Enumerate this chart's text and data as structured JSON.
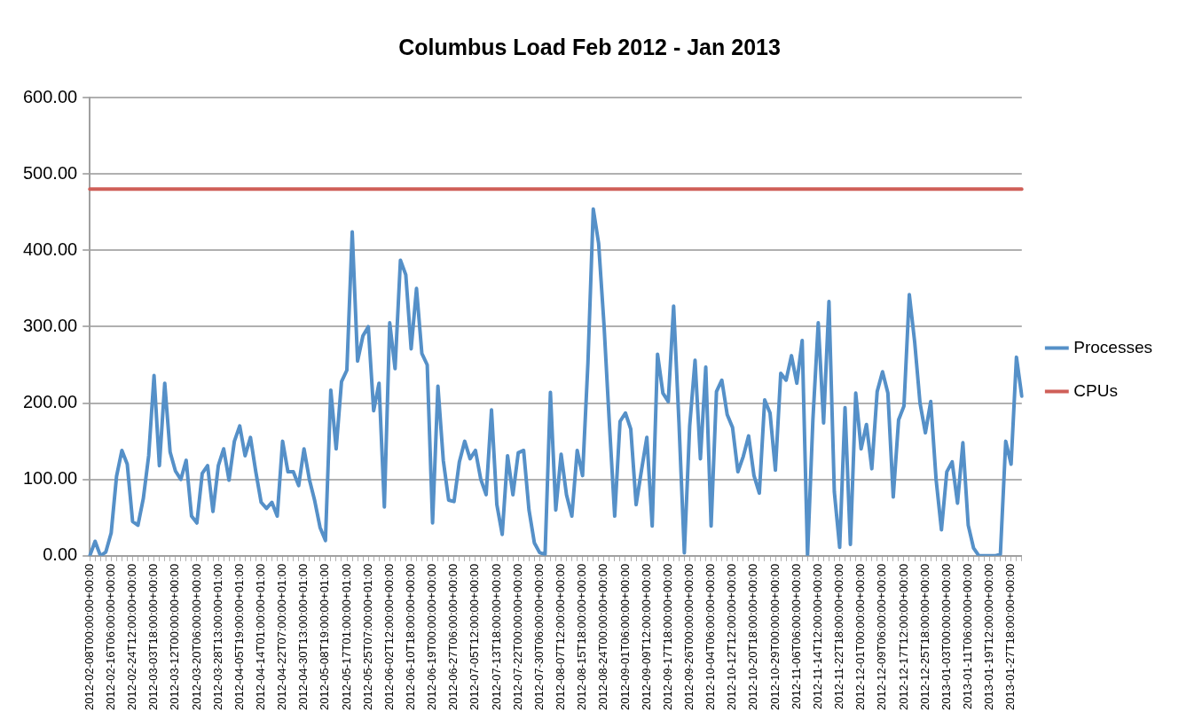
{
  "chart_data": {
    "type": "line",
    "title": "Columbus Load Feb 2012 - Jan 2013",
    "categories": [
      "2012-02-08T00:00:00+00:00",
      null,
      null,
      null,
      "2012-02-16T06:00:00+00:00",
      null,
      null,
      null,
      "2012-02-24T12:00:00+00:00",
      null,
      null,
      null,
      "2012-03-03T18:00:00+00:00",
      null,
      null,
      null,
      "2012-03-12T00:00:00+00:00",
      null,
      null,
      null,
      "2012-03-20T06:00:00+00:00",
      null,
      null,
      null,
      "2012-03-28T13:00:00+01:00",
      null,
      null,
      null,
      "2012-04-05T19:00:00+01:00",
      null,
      null,
      null,
      "2012-04-14T01:00:00+01:00",
      null,
      null,
      null,
      "2012-04-22T07:00:00+01:00",
      null,
      null,
      null,
      "2012-04-30T13:00:00+01:00",
      null,
      null,
      null,
      "2012-05-08T19:00:00+01:00",
      null,
      null,
      null,
      "2012-05-17T01:00:00+01:00",
      null,
      null,
      null,
      "2012-05-25T07:00:00+01:00",
      null,
      null,
      null,
      "2012-06-02T12:00:00+00:00",
      null,
      null,
      null,
      "2012-06-10T18:00:00+00:00",
      null,
      null,
      null,
      "2012-06-19T00:00:00+00:00",
      null,
      null,
      null,
      "2012-06-27T06:00:00+00:00",
      null,
      null,
      null,
      "2012-07-05T12:00:00+00:00",
      null,
      null,
      null,
      "2012-07-13T18:00:00+00:00",
      null,
      null,
      null,
      "2012-07-22T00:00:00+00:00",
      null,
      null,
      null,
      "2012-07-30T06:00:00+00:00",
      null,
      null,
      null,
      "2012-08-07T12:00:00+00:00",
      null,
      null,
      null,
      "2012-08-15T18:00:00+00:00",
      null,
      null,
      null,
      "2012-08-24T00:00:00+00:00",
      null,
      null,
      null,
      "2012-09-01T06:00:00+00:00",
      null,
      null,
      null,
      "2012-09-09T12:00:00+00:00",
      null,
      null,
      null,
      "2012-09-17T18:00:00+00:00",
      null,
      null,
      null,
      "2012-09-26T00:00:00+00:00",
      null,
      null,
      null,
      "2012-10-04T06:00:00+00:00",
      null,
      null,
      null,
      "2012-10-12T12:00:00+00:00",
      null,
      null,
      null,
      "2012-10-20T18:00:00+00:00",
      null,
      null,
      null,
      "2012-10-29T00:00:00+00:00",
      null,
      null,
      null,
      "2012-11-06T06:00:00+00:00",
      null,
      null,
      null,
      "2012-11-14T12:00:00+00:00",
      null,
      null,
      null,
      "2012-11-22T18:00:00+00:00",
      null,
      null,
      null,
      "2012-12-01T00:00:00+00:00",
      null,
      null,
      null,
      "2012-12-09T06:00:00+00:00",
      null,
      null,
      null,
      "2012-12-17T12:00:00+00:00",
      null,
      null,
      null,
      "2012-12-25T18:00:00+00:00",
      null,
      null,
      null,
      "2013-01-03T00:00:00+00:00",
      null,
      null,
      null,
      "2013-01-11T06:00:00+00:00",
      null,
      null,
      null,
      "2013-01-19T12:00:00+00:00",
      null,
      null,
      null,
      "2013-01-27T18:00:00+00:00",
      null,
      null
    ],
    "series": [
      {
        "name": "Processes",
        "color": "#5590c8",
        "values": [
          0,
          19,
          0,
          5,
          30,
          104,
          138,
          120,
          45,
          40,
          75,
          131,
          236,
          118,
          226,
          136,
          111,
          100,
          125,
          52,
          43,
          108,
          118,
          58,
          118,
          140,
          99,
          150,
          170,
          131,
          155,
          110,
          70,
          62,
          70,
          52,
          150,
          110,
          110,
          92,
          140,
          100,
          72,
          37,
          20,
          217,
          140,
          228,
          243,
          424,
          255,
          288,
          300,
          190,
          226,
          64,
          305,
          245,
          387,
          368,
          271,
          350,
          265,
          250,
          43,
          222,
          125,
          73,
          71,
          123,
          150,
          127,
          138,
          100,
          80,
          191,
          67,
          28,
          131,
          80,
          135,
          138,
          60,
          17,
          4,
          2,
          214,
          60,
          133,
          80,
          52,
          138,
          105,
          252,
          454,
          409,
          303,
          174,
          52,
          176,
          187,
          166,
          67,
          112,
          155,
          39,
          264,
          213,
          202,
          327,
          174,
          4,
          170,
          256,
          127,
          247,
          39,
          215,
          230,
          185,
          168,
          110,
          130,
          157,
          105,
          82,
          204,
          187,
          112,
          239,
          230,
          262,
          226,
          282,
          0,
          178,
          305,
          174,
          333,
          84,
          11,
          194,
          15,
          213,
          140,
          172,
          114,
          215,
          241,
          213,
          77,
          178,
          196,
          342,
          280,
          200,
          161,
          202,
          100,
          34,
          110,
          123,
          69,
          148,
          40,
          10,
          0,
          0,
          0,
          0,
          2,
          150,
          120,
          260,
          209
        ]
      },
      {
        "name": "CPUs",
        "color": "#cf5f58",
        "values": [
          480,
          480,
          480,
          480,
          480,
          480,
          480,
          480,
          480,
          480,
          480,
          480,
          480,
          480,
          480,
          480,
          480,
          480,
          480,
          480,
          480,
          480,
          480,
          480,
          480,
          480,
          480,
          480,
          480,
          480,
          480,
          480,
          480,
          480,
          480,
          480,
          480,
          480,
          480,
          480,
          480,
          480,
          480,
          480,
          480,
          480,
          480,
          480,
          480,
          480,
          480,
          480,
          480,
          480,
          480,
          480,
          480,
          480,
          480,
          480,
          480,
          480,
          480,
          480,
          480,
          480,
          480,
          480,
          480,
          480,
          480,
          480,
          480,
          480,
          480,
          480,
          480,
          480,
          480,
          480,
          480,
          480,
          480,
          480,
          480,
          480,
          480,
          480,
          480,
          480,
          480,
          480,
          480,
          480,
          480,
          480,
          480,
          480,
          480,
          480,
          480,
          480,
          480,
          480,
          480,
          480,
          480,
          480,
          480,
          480,
          480,
          480,
          480,
          480,
          480,
          480,
          480,
          480,
          480,
          480,
          480,
          480,
          480,
          480,
          480,
          480,
          480,
          480,
          480,
          480,
          480,
          480,
          480,
          480,
          480,
          480,
          480,
          480,
          480,
          480,
          480,
          480,
          480,
          480,
          480,
          480,
          480,
          480,
          480,
          480,
          480,
          480,
          480,
          480,
          480,
          480,
          480,
          480,
          480,
          480,
          480,
          480,
          480,
          480,
          480,
          480,
          480,
          480,
          480,
          480,
          480,
          480,
          480,
          480,
          480
        ]
      }
    ],
    "ylim": [
      0,
      600
    ],
    "yticks": [
      {
        "value": 0,
        "label": "0.00"
      },
      {
        "value": 100,
        "label": "100.00"
      },
      {
        "value": 200,
        "label": "200.00"
      },
      {
        "value": 300,
        "label": "300.00"
      },
      {
        "value": 400,
        "label": "400.00"
      },
      {
        "value": 500,
        "label": "500.00"
      },
      {
        "value": 600,
        "label": "600.00"
      }
    ],
    "grid": "y",
    "legend": "right",
    "marker": "none",
    "line_style": "solid"
  }
}
